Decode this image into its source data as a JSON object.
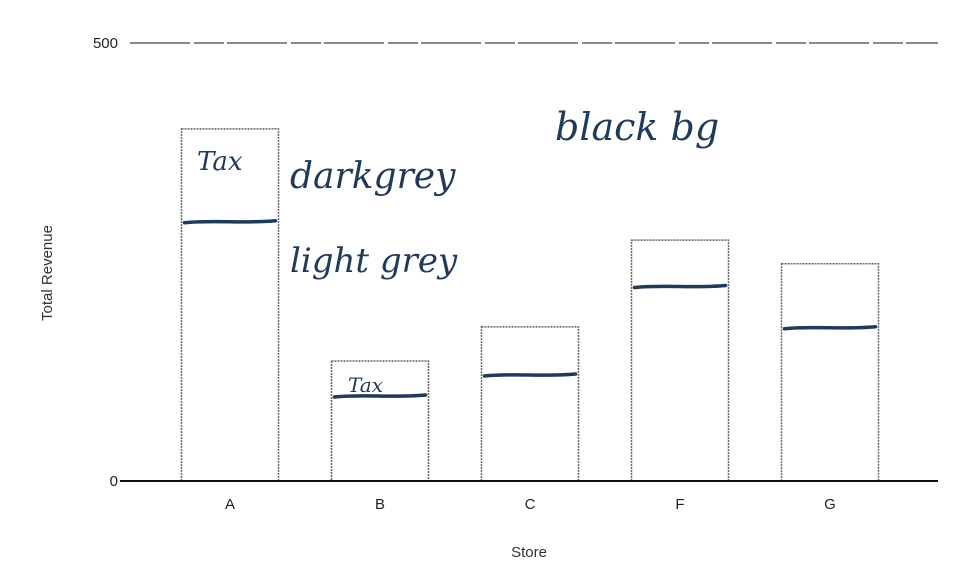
{
  "chart_data": {
    "type": "bar",
    "title": "",
    "xlabel": "Store",
    "ylabel": "Total Revenue",
    "categories": [
      "A",
      "B",
      "C",
      "F",
      "G"
    ],
    "ylim": [
      0,
      500
    ],
    "yticks": [
      0,
      500
    ],
    "grid": false,
    "series": [
      {
        "values": [
          402,
          137,
          176,
          275,
          248
        ]
      }
    ],
    "split_marks": [
      296,
      97,
      121,
      222,
      175
    ],
    "annotations": [
      {
        "text": "Tax",
        "near": "bar A, upper section"
      },
      {
        "text": "darkgrey",
        "near": "right of bar A, upper"
      },
      {
        "text": "light grey",
        "near": "right of bar A, lower"
      },
      {
        "text": "Tax",
        "near": "bar B, upper section"
      },
      {
        "text": "black bg",
        "near": "top center"
      }
    ]
  }
}
